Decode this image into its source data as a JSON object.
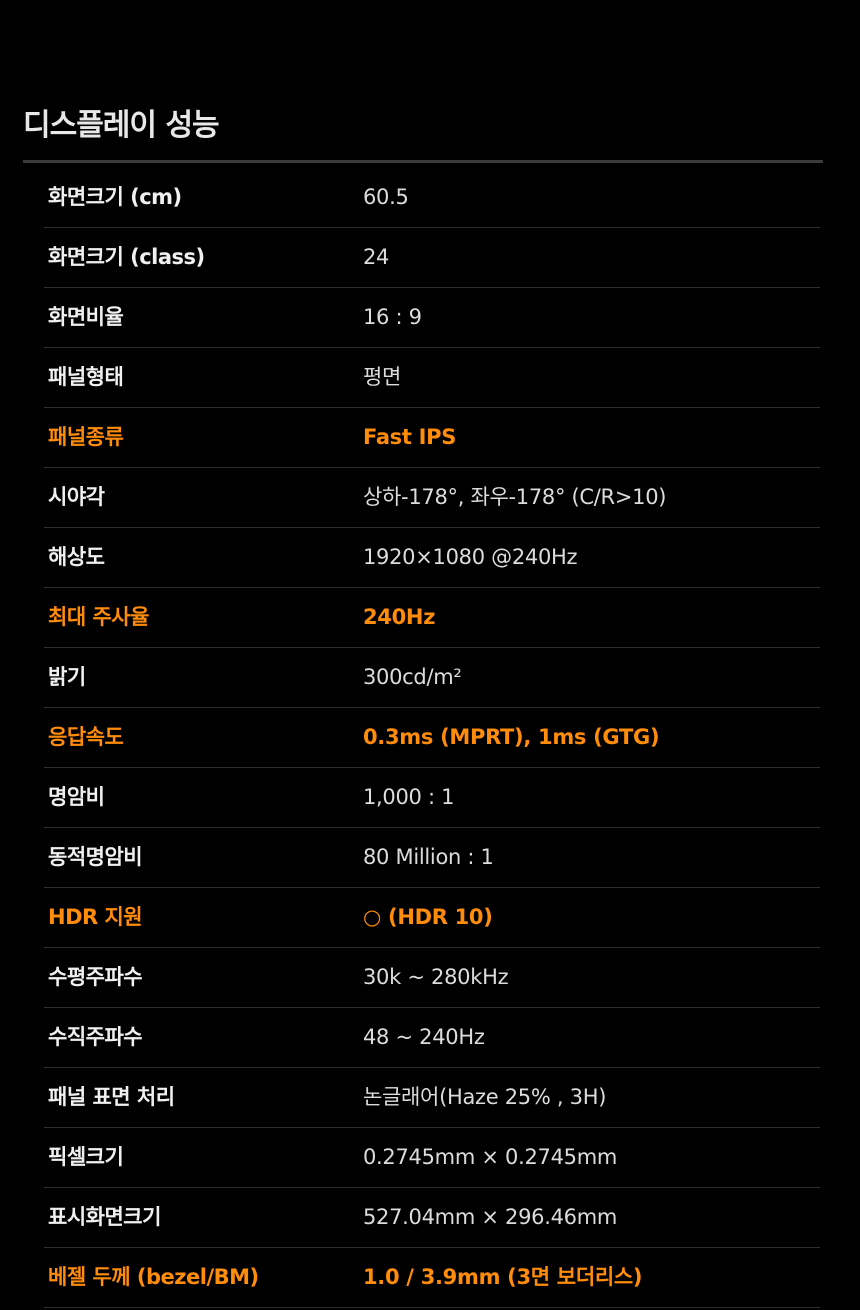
{
  "section_title": "디스플레이 성능",
  "accent_color": "#ff8c0a",
  "specs": [
    {
      "label": "화면크기 (cm)",
      "value": "60.5",
      "highlight": false
    },
    {
      "label": "화면크기 (class)",
      "value": "24",
      "highlight": false
    },
    {
      "label": "화면비율",
      "value": "16 : 9",
      "highlight": false
    },
    {
      "label": "패널형태",
      "value": "평면",
      "highlight": false
    },
    {
      "label": "패널종류",
      "value": "Fast IPS",
      "highlight": true
    },
    {
      "label": "시야각",
      "value": "상하-178°, 좌우-178° (C/R>10)",
      "highlight": false
    },
    {
      "label": "해상도",
      "value": "1920×1080 @240Hz",
      "highlight": false
    },
    {
      "label": "최대 주사율",
      "value": "240Hz",
      "highlight": true
    },
    {
      "label": "밝기",
      "value": "300cd/m²",
      "highlight": false
    },
    {
      "label": "응답속도",
      "value": "0.3ms (MPRT), 1ms (GTG)",
      "highlight": true
    },
    {
      "label": "명암비",
      "value": "1,000 : 1",
      "highlight": false
    },
    {
      "label": "동적명암비",
      "value": "80 Million : 1",
      "highlight": false
    },
    {
      "label": "HDR 지원",
      "value": "○ (HDR 10)",
      "highlight": true
    },
    {
      "label": "수평주파수",
      "value": "30k ~ 280kHz",
      "highlight": false
    },
    {
      "label": "수직주파수",
      "value": "48 ~ 240Hz",
      "highlight": false
    },
    {
      "label": "패널 표면 처리",
      "value": "논글래어(Haze 25% , 3H)",
      "highlight": false
    },
    {
      "label": "픽셀크기",
      "value": "0.2745mm × 0.2745mm",
      "highlight": false
    },
    {
      "label": "표시화면크기",
      "value": "527.04mm × 296.46mm",
      "highlight": false
    },
    {
      "label": "베젤 두께 (bezel/BM)",
      "value": "1.0 / 3.9mm (3면 보더리스)",
      "highlight": true
    }
  ]
}
